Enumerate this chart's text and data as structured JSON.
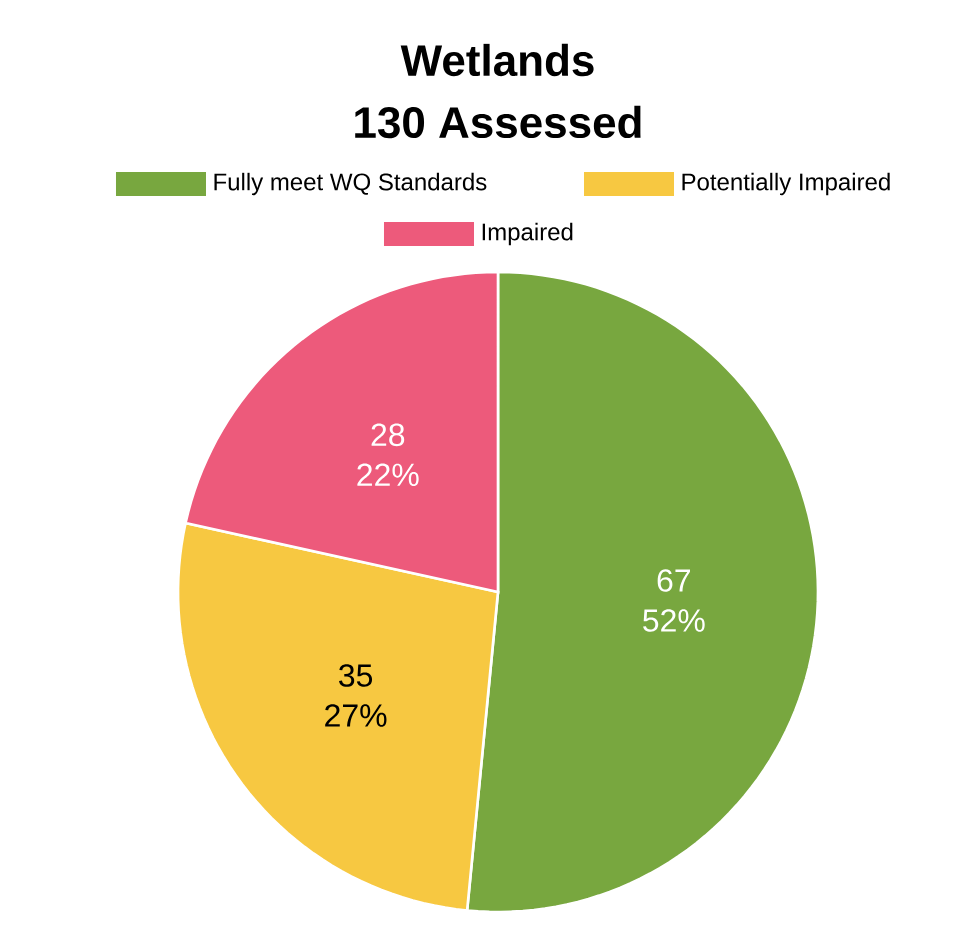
{
  "chart_data": {
    "type": "pie",
    "title": "Wetlands",
    "subtitle": "130 Assessed",
    "categories": [
      "Fully meet WQ Standards",
      "Potentially Impaired",
      "Impaired"
    ],
    "values": [
      67,
      35,
      28
    ],
    "colors": [
      "#78a73f",
      "#f7c841",
      "#ed5a7b"
    ],
    "value_labels": [
      "67\n52%",
      "35\n27%",
      "28\n22%"
    ],
    "legend": "top"
  }
}
